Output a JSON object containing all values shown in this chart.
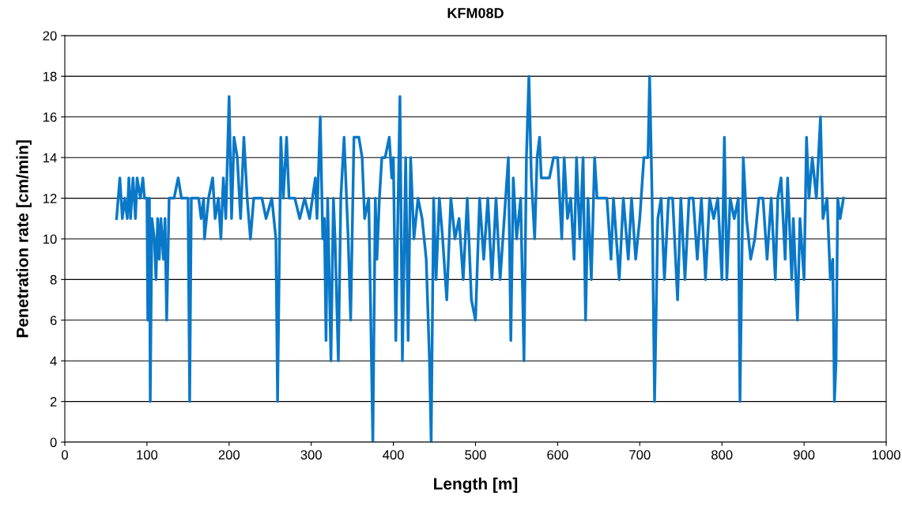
{
  "chart_data": {
    "type": "line",
    "title": "KFM08D",
    "xlabel": "Length [m]",
    "ylabel": "Penetration rate [cm/min]",
    "xlim": [
      0,
      1000
    ],
    "xticks": [
      0,
      100,
      200,
      300,
      400,
      500,
      600,
      700,
      800,
      900,
      1000
    ],
    "ylim": [
      0,
      20
    ],
    "yticks": [
      0,
      2,
      4,
      6,
      8,
      10,
      12,
      14,
      16,
      18,
      20
    ],
    "grid": "y",
    "marker": "none",
    "line_style": "solid",
    "series": [
      {
        "color": "#0a78c8",
        "x": [
          63,
          67,
          70,
          73,
          76,
          78,
          80,
          83,
          86,
          88,
          92,
          95,
          97,
          100,
          101,
          103,
          104,
          106,
          109,
          111,
          113,
          115,
          117,
          120,
          122,
          124,
          127,
          130,
          133,
          138,
          142,
          148,
          150,
          152,
          154,
          163,
          166,
          169,
          170,
          175,
          180,
          183,
          187,
          190,
          193,
          196,
          200,
          203,
          206,
          210,
          214,
          218,
          222,
          226,
          230,
          236,
          240,
          245,
          252,
          257,
          259,
          263,
          266,
          270,
          273,
          280,
          286,
          292,
          298,
          305,
          307,
          311,
          314,
          316,
          318,
          320,
          324,
          327,
          329,
          333,
          336,
          340,
          345,
          348,
          352,
          358,
          362,
          365,
          370,
          375,
          378,
          380,
          383,
          386,
          390,
          395,
          398,
          400,
          403,
          405,
          408,
          411,
          415,
          418,
          421,
          425,
          430,
          435,
          440,
          444,
          446,
          449,
          452,
          456,
          460,
          465,
          470,
          475,
          480,
          485,
          490,
          495,
          500,
          505,
          510,
          515,
          520,
          525,
          530,
          535,
          540,
          543,
          546,
          550,
          555,
          559,
          562,
          565,
          568,
          572,
          575,
          578,
          580,
          590,
          595,
          600,
          605,
          608,
          612,
          616,
          620,
          623,
          627,
          631,
          634,
          637,
          641,
          645,
          648,
          660,
          665,
          668,
          675,
          680,
          686,
          690,
          695,
          700,
          705,
          710,
          712,
          715,
          718,
          722,
          726,
          730,
          735,
          740,
          746,
          750,
          755,
          760,
          765,
          770,
          775,
          780,
          785,
          790,
          795,
          800,
          803,
          806,
          810,
          815,
          820,
          822,
          826,
          830,
          835,
          840,
          845,
          850,
          855,
          860,
          865,
          868,
          872,
          877,
          880,
          885,
          887,
          892,
          895,
          900,
          903,
          906,
          910,
          915,
          920,
          923,
          928,
          932,
          935,
          937,
          939,
          941,
          944,
          948
        ],
        "values": [
          11,
          13,
          11,
          12,
          11,
          13,
          11,
          13,
          11,
          13,
          12,
          13,
          12,
          12,
          6,
          12,
          2,
          11,
          10,
          8,
          11,
          9,
          11,
          9,
          11,
          6,
          12,
          12,
          12,
          13,
          12,
          12,
          12,
          2,
          12,
          12,
          11,
          12,
          10,
          12,
          13,
          11,
          12,
          10,
          13,
          11,
          17,
          11,
          15,
          14,
          11,
          15,
          12,
          10,
          12,
          12,
          12,
          11,
          12,
          10,
          2,
          15,
          12,
          15,
          12,
          12,
          11,
          12,
          11,
          13,
          11,
          16,
          10,
          11,
          5,
          12,
          4,
          12,
          10,
          4,
          12,
          15,
          10,
          6,
          15,
          15,
          14,
          11,
          12,
          0,
          12,
          9,
          12,
          14,
          14,
          15,
          13,
          14,
          5,
          10,
          17,
          4,
          14,
          5,
          14,
          10,
          12,
          11,
          9,
          4,
          0,
          12,
          8,
          12,
          10,
          7,
          12,
          10,
          11,
          8,
          12,
          7,
          6,
          12,
          9,
          12,
          8,
          12,
          8,
          11,
          14,
          5,
          13,
          10,
          12,
          4,
          14,
          18,
          13,
          10,
          14,
          15,
          13,
          13,
          14,
          14,
          10,
          14,
          11,
          12,
          9,
          14,
          10,
          14,
          6,
          12,
          8,
          14,
          12,
          12,
          9,
          12,
          8,
          12,
          9,
          12,
          9,
          11,
          14,
          14,
          18,
          12,
          2,
          11,
          12,
          8,
          12,
          12,
          7,
          12,
          8,
          12,
          12,
          9,
          12,
          8,
          12,
          11,
          12,
          8,
          15,
          8,
          12,
          11,
          12,
          2,
          14,
          11,
          9,
          10,
          12,
          12,
          9,
          12,
          8,
          12,
          13,
          9,
          13,
          8,
          11,
          6,
          11,
          8,
          15,
          12,
          14,
          12,
          16,
          11,
          12,
          8,
          9,
          2,
          4,
          12,
          11,
          12
        ]
      }
    ]
  }
}
